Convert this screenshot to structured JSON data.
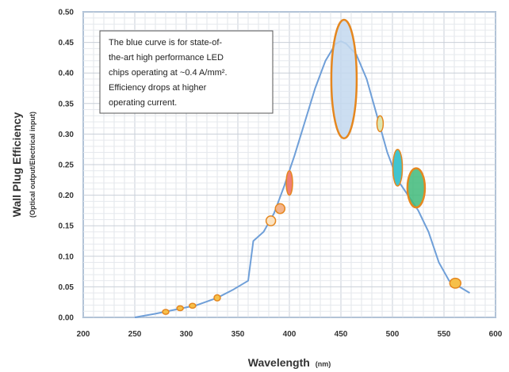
{
  "chart_data": {
    "type": "line",
    "title": "",
    "xlabel": "Wavelength",
    "xlabel_unit": "(nm)",
    "ylabel": "Wall Plug Efficiency",
    "ylabel_sub": "(Optical output/Electrical input)",
    "xlim": [
      200,
      600
    ],
    "ylim": [
      0,
      0.5
    ],
    "xticks": [
      "200",
      "250",
      "300",
      "350",
      "400",
      "450",
      "500",
      "550",
      "600"
    ],
    "yticks": [
      "0.00",
      "0.05",
      "0.10",
      "0.15",
      "0.20",
      "0.25",
      "0.30",
      "0.35",
      "0.40",
      "0.45",
      "0.50"
    ],
    "grid": true,
    "series": [
      {
        "name": "",
        "color": "#6f9fd8",
        "x": [
          250,
          270,
          290,
          310,
          330,
          345,
          360,
          365,
          375,
          385,
          395,
          405,
          415,
          425,
          435,
          445,
          450,
          455,
          465,
          475,
          485,
          495,
          505,
          515,
          525,
          535,
          545,
          555,
          565,
          575
        ],
        "y": [
          0.0,
          0.006,
          0.013,
          0.02,
          0.032,
          0.045,
          0.06,
          0.125,
          0.14,
          0.17,
          0.215,
          0.265,
          0.32,
          0.375,
          0.42,
          0.448,
          0.452,
          0.448,
          0.43,
          0.39,
          0.33,
          0.27,
          0.225,
          0.2,
          0.175,
          0.14,
          0.09,
          0.06,
          0.05,
          0.04
        ]
      }
    ],
    "markers": [
      {
        "x": 280,
        "y": 0.009,
        "rx": 4,
        "ry": 0.004,
        "fill": "#f6c04a",
        "stroke": "#e5871f"
      },
      {
        "x": 294,
        "y": 0.015,
        "rx": 4,
        "ry": 0.004,
        "fill": "#f6c04a",
        "stroke": "#e5871f"
      },
      {
        "x": 306,
        "y": 0.019,
        "rx": 4,
        "ry": 0.004,
        "fill": "#f6c04a",
        "stroke": "#e5871f"
      },
      {
        "x": 330,
        "y": 0.032,
        "rx": 4,
        "ry": 0.005,
        "fill": "#f6c04a",
        "stroke": "#e5871f"
      },
      {
        "x": 382,
        "y": 0.158,
        "rx": 6,
        "ry": 0.008,
        "fill": "#fbe3c2",
        "stroke": "#e5871f"
      },
      {
        "x": 391,
        "y": 0.178,
        "rx": 6,
        "ry": 0.008,
        "fill": "#f4b48a",
        "stroke": "#e5871f"
      },
      {
        "x": 400,
        "y": 0.22,
        "rx": 4,
        "ry": 0.02,
        "fill": "#ef7e74",
        "stroke": "#e5871f"
      },
      {
        "x": 453,
        "y": 0.39,
        "rx": 16,
        "ry": 0.097,
        "fill": "#c3d8ef",
        "stroke": "#e5871f"
      },
      {
        "x": 488,
        "y": 0.317,
        "rx": 4,
        "ry": 0.013,
        "fill": "#dce6b2",
        "stroke": "#e5871f"
      },
      {
        "x": 505,
        "y": 0.245,
        "rx": 6,
        "ry": 0.03,
        "fill": "#41c4cf",
        "stroke": "#e5871f"
      },
      {
        "x": 523,
        "y": 0.212,
        "rx": 11,
        "ry": 0.032,
        "fill": "#3fba7a",
        "stroke": "#e5871f"
      },
      {
        "x": 561,
        "y": 0.056,
        "rx": 7,
        "ry": 0.008,
        "fill": "#f6c04a",
        "stroke": "#e5871f"
      }
    ],
    "annotation": {
      "lines": [
        "The blue curve is for state-of-",
        "the-art high performance LED",
        "chips operating at  ~0.4 A/mm².",
        "Efficiency drops at higher",
        "operating current."
      ]
    }
  }
}
